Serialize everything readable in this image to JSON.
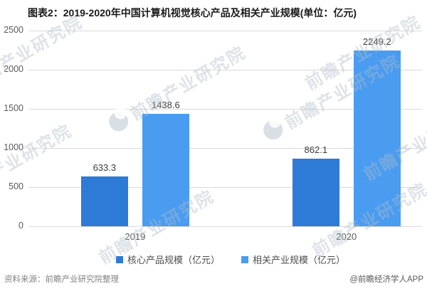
{
  "title": "图表2：2019-2020年中国计算机视觉核心产品及相关产业规模(单位：亿元)",
  "chart_data": {
    "type": "bar",
    "categories": [
      "2019",
      "2020"
    ],
    "series": [
      {
        "name": "核心产品规模（亿元）",
        "color": "#2d7ad7",
        "values": [
          633.3,
          862.1
        ]
      },
      {
        "name": "相关产业规模（亿元）",
        "color": "#4a9cf1",
        "values": [
          1438.6,
          2249.2
        ]
      }
    ],
    "title": "图表2：2019-2020年中国计算机视觉核心产品及相关产业规模(单位：亿元)",
    "xlabel": "",
    "ylabel": "",
    "ylim": [
      0,
      2500
    ],
    "yticks": [
      0,
      500,
      1000,
      1500,
      2000,
      2500
    ],
    "grid": true,
    "legend_position": "bottom",
    "value_labels": [
      [
        "633.3",
        "862.1"
      ],
      [
        "1438.6",
        "2249.2"
      ]
    ]
  },
  "watermark": {
    "text": "前瞻产业研究院"
  },
  "footer": {
    "source": "资料来源：前瞻产业研究院整理",
    "credit": "@前瞻经济学人APP"
  },
  "colors": {
    "grid": "#d9d9d9",
    "axis_label": "#595959",
    "value_label": "#3d3d3d",
    "title": "#1a1a1a"
  }
}
